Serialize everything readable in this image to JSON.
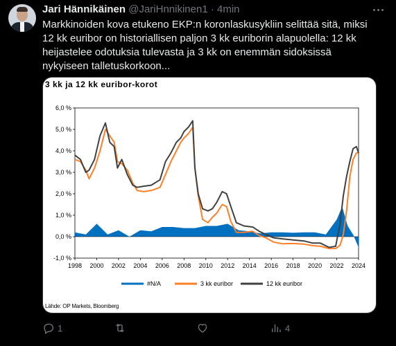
{
  "tweet": {
    "author_name": "Jari Hännikäinen",
    "handle": "@JariHnnikinen1",
    "separator": "·",
    "time": "4min",
    "text": "Markkinoiden kova etukeno EKP:n koronlaskusykliin selittää sitä, miksi 12 kk euribor on historiallisen paljon 3 kk euriborin alapuolella: 12 kk heijastelee odotuksia tulevasta ja 3 kk on enemmän sidoksissä nykyiseen talletuskorkoon..."
  },
  "actions": {
    "reply_count": "1",
    "retweet_count": "",
    "like_count": "",
    "views_count": "4"
  },
  "icons": [
    "more-icon",
    "reply-icon",
    "retweet-icon",
    "like-icon",
    "views-icon"
  ],
  "chart_data": {
    "type": "line",
    "title": "3 kk ja 12 kk euribor-korot",
    "source": "Lähde: OP Markets, Bloomberg",
    "xlabel": "",
    "ylabel": "",
    "xlim": [
      1998,
      2024
    ],
    "ylim": [
      -1.0,
      6.0
    ],
    "x_ticks": [
      "1998",
      "2000",
      "2002",
      "2004",
      "2006",
      "2008",
      "2010",
      "2012",
      "2014",
      "2016",
      "2018",
      "2020",
      "2022",
      "2024"
    ],
    "y_ticks": [
      "6,0 %",
      "5,0 %",
      "4,0 %",
      "3,0 %",
      "2,0 %",
      "1,0 %",
      "0,0 %",
      "-1,0 %"
    ],
    "grid": "horizontal",
    "legend": "bottom",
    "colors": {
      "spread": "#0070c0",
      "three_month": "#ff7f27",
      "twelve_month": "#404040"
    },
    "series": [
      {
        "name": "3 kk euribor",
        "x": [
          1998.0,
          1998.5,
          1999.0,
          1999.3,
          1999.8,
          2000.3,
          2000.8,
          2001.2,
          2001.6,
          2001.9,
          2002.3,
          2002.8,
          2003.3,
          2003.7,
          2004.3,
          2005.0,
          2005.8,
          2006.3,
          2006.8,
          2007.3,
          2007.7,
          2008.0,
          2008.4,
          2008.8,
          2009.0,
          2009.3,
          2009.7,
          2010.2,
          2010.6,
          2011.0,
          2011.5,
          2011.9,
          2012.3,
          2012.8,
          2013.5,
          2014.3,
          2014.9,
          2015.5,
          2016.2,
          2017.0,
          2018.0,
          2019.0,
          2019.8,
          2020.5,
          2021.3,
          2021.9,
          2022.3,
          2022.6,
          2022.9,
          2023.2,
          2023.5,
          2023.8,
          2024.0
        ],
        "values": [
          3.6,
          3.5,
          3.1,
          2.7,
          3.2,
          4.0,
          5.0,
          4.7,
          4.4,
          3.5,
          3.4,
          3.1,
          2.5,
          2.15,
          2.1,
          2.15,
          2.3,
          2.9,
          3.5,
          4.0,
          4.4,
          4.6,
          4.8,
          5.1,
          3.2,
          1.9,
          0.8,
          0.65,
          0.9,
          1.1,
          1.5,
          1.4,
          0.7,
          0.2,
          0.2,
          0.25,
          0.05,
          -0.05,
          -0.25,
          -0.33,
          -0.32,
          -0.35,
          -0.42,
          -0.45,
          -0.55,
          -0.55,
          -0.4,
          0.1,
          1.2,
          2.8,
          3.6,
          3.9,
          3.9
        ]
      },
      {
        "name": "12 kk euribor",
        "x": [
          1998.0,
          1998.5,
          1999.0,
          1999.3,
          1999.8,
          2000.3,
          2000.8,
          2001.2,
          2001.6,
          2001.9,
          2002.3,
          2002.8,
          2003.3,
          2003.7,
          2004.3,
          2005.0,
          2005.8,
          2006.3,
          2006.8,
          2007.3,
          2007.7,
          2008.0,
          2008.4,
          2008.8,
          2009.0,
          2009.3,
          2009.7,
          2010.2,
          2010.6,
          2011.0,
          2011.5,
          2011.9,
          2012.3,
          2012.8,
          2013.5,
          2014.3,
          2014.9,
          2015.5,
          2016.2,
          2017.0,
          2018.0,
          2019.0,
          2019.8,
          2020.5,
          2021.3,
          2021.9,
          2022.3,
          2022.6,
          2022.9,
          2023.2,
          2023.5,
          2023.8,
          2024.0
        ],
        "values": [
          3.8,
          3.6,
          3.0,
          3.1,
          3.6,
          4.7,
          5.3,
          4.4,
          4.2,
          3.2,
          3.6,
          2.9,
          2.4,
          2.3,
          2.35,
          2.4,
          2.65,
          3.5,
          3.9,
          4.4,
          4.6,
          4.9,
          5.1,
          5.4,
          3.2,
          2.0,
          1.3,
          1.2,
          1.3,
          1.6,
          2.1,
          2.0,
          1.4,
          0.65,
          0.5,
          0.45,
          0.25,
          0.1,
          -0.05,
          -0.1,
          -0.15,
          -0.2,
          -0.3,
          -0.3,
          -0.5,
          -0.45,
          0.6,
          1.9,
          2.8,
          3.5,
          4.1,
          4.2,
          3.9
        ]
      },
      {
        "name": "#N/A",
        "x": [
          1998.0,
          1999.0,
          2000.0,
          2001.0,
          2002.0,
          2003.0,
          2004.0,
          2005.0,
          2006.0,
          2007.0,
          2008.0,
          2009.0,
          2010.0,
          2011.0,
          2012.0,
          2013.0,
          2014.0,
          2015.0,
          2016.0,
          2017.0,
          2018.0,
          2019.0,
          2020.0,
          2021.0,
          2022.0,
          2022.5,
          2023.0,
          2023.5,
          2024.0
        ],
        "values": [
          0.2,
          0.1,
          0.6,
          0.1,
          0.3,
          0.0,
          0.3,
          0.25,
          0.45,
          0.45,
          0.4,
          0.4,
          0.5,
          0.5,
          0.6,
          0.3,
          0.25,
          0.15,
          0.2,
          0.2,
          0.18,
          0.2,
          0.2,
          0.1,
          0.8,
          1.4,
          0.5,
          0.1,
          -0.5
        ]
      }
    ]
  }
}
